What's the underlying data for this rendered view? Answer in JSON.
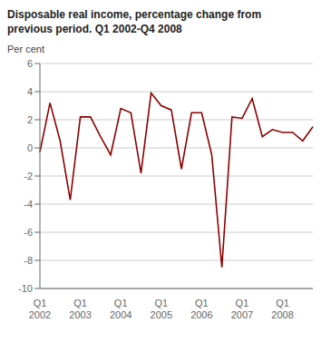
{
  "chart_data": {
    "type": "line",
    "title": "Disposable real income, percentage change from\nprevious period. Q1 2002-Q4 2008",
    "ylabel": "Per cent",
    "categories": [
      "Q1\n2002",
      null,
      null,
      null,
      "Q1\n2003",
      null,
      null,
      null,
      "Q1\n2004",
      null,
      null,
      null,
      "Q1\n2005",
      null,
      null,
      null,
      "Q1\n2006",
      null,
      null,
      null,
      "Q1\n2007",
      null,
      null,
      null,
      "Q1\n2008",
      null,
      null,
      null
    ],
    "values": [
      -0.3,
      3.2,
      0.5,
      -3.7,
      2.2,
      2.2,
      0.8,
      -0.5,
      2.8,
      2.5,
      -1.8,
      3.9,
      3.0,
      2.7,
      -1.5,
      2.5,
      2.5,
      -0.5,
      -8.5,
      2.2,
      2.1,
      3.5,
      0.8,
      1.3,
      1.1,
      1.1,
      0.5,
      1.5
    ],
    "color": "#8B0000",
    "ylim": [
      -10,
      6
    ],
    "yticks": [
      -10,
      -8,
      -6,
      -4,
      -2,
      0,
      2,
      4,
      6
    ],
    "grid": true
  }
}
